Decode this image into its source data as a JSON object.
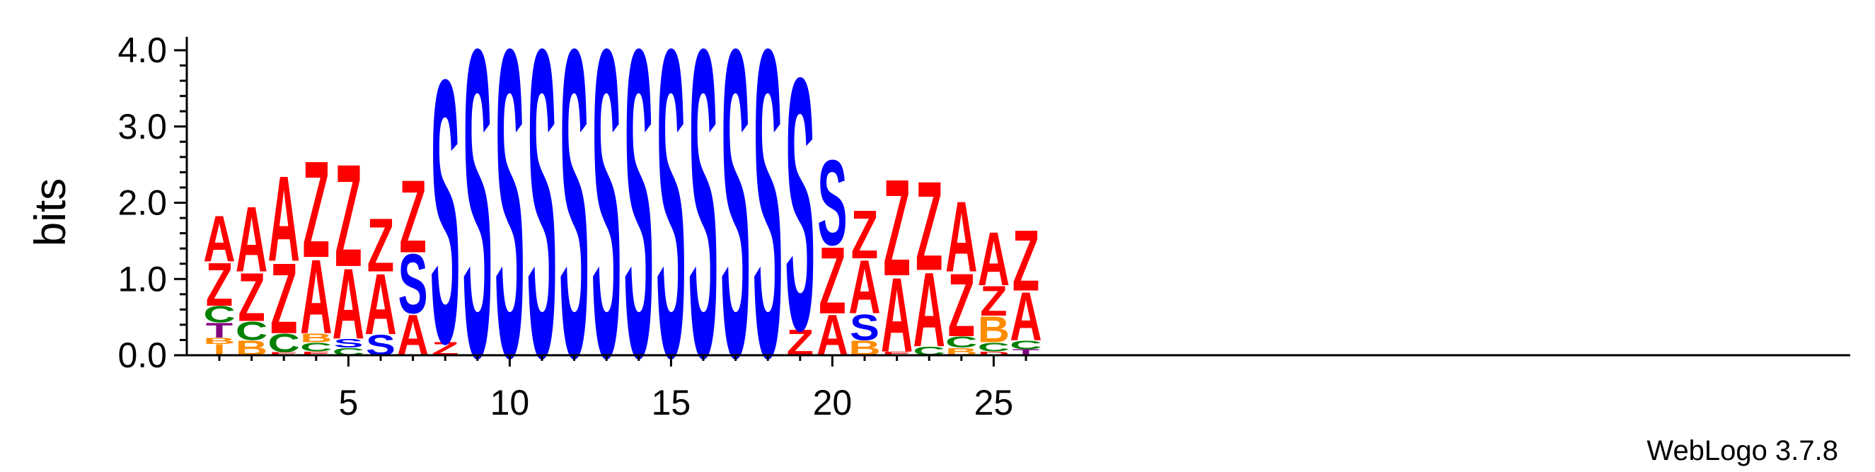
{
  "chart_data": {
    "type": "sequence-logo",
    "ylabel": "bits",
    "ylim": [
      0,
      4.0
    ],
    "y_ticks": [
      "0.0",
      "1.0",
      "2.0",
      "3.0",
      "4.0"
    ],
    "x_ticks": [
      "5",
      "10",
      "15",
      "20",
      "25"
    ],
    "colors": {
      "A": "#ff0000",
      "Z": "#ff0000",
      "S": "#0000ff",
      "C": "#008000",
      "B": "#ff8c00",
      "T": "#800080",
      "I": "#ff8c00",
      "E": "#ff0000",
      "D": "#ff0000"
    },
    "positions": [
      {
        "pos": 1,
        "stack": [
          [
            "I",
            0.15
          ],
          [
            "B",
            0.08
          ],
          [
            "T",
            0.2
          ],
          [
            "C",
            0.22
          ],
          [
            "Z",
            0.58
          ],
          [
            "A",
            0.62
          ]
        ]
      },
      {
        "pos": 2,
        "stack": [
          [
            "B",
            0.2
          ],
          [
            "C",
            0.25
          ],
          [
            "Z",
            0.65
          ],
          [
            "A",
            0.88
          ]
        ]
      },
      {
        "pos": 3,
        "stack": [
          [
            "E",
            0.04
          ],
          [
            "C",
            0.25
          ],
          [
            "Z",
            0.95
          ],
          [
            "A",
            1.15
          ]
        ]
      },
      {
        "pos": 4,
        "stack": [
          [
            "E",
            0.05
          ],
          [
            "C",
            0.12
          ],
          [
            "B",
            0.12
          ],
          [
            "A",
            1.0
          ],
          [
            "Z",
            1.3
          ]
        ]
      },
      {
        "pos": 5,
        "stack": [
          [
            "C",
            0.1
          ],
          [
            "S",
            0.12
          ],
          [
            "A",
            0.95
          ],
          [
            "Z",
            1.38
          ]
        ]
      },
      {
        "pos": 6,
        "stack": [
          [
            "S",
            0.28
          ],
          [
            "A",
            0.82
          ],
          [
            "Z",
            0.72
          ]
        ]
      },
      {
        "pos": 7,
        "stack": [
          [
            "A",
            0.55
          ],
          [
            "S",
            0.8
          ],
          [
            "Z",
            0.98
          ]
        ]
      },
      {
        "pos": 8,
        "stack": [
          [
            "Z",
            0.18
          ],
          [
            "S",
            3.55
          ]
        ]
      },
      {
        "pos": 9,
        "stack": [
          [
            "S",
            4.15
          ]
        ]
      },
      {
        "pos": 10,
        "stack": [
          [
            "S",
            4.15
          ]
        ]
      },
      {
        "pos": 11,
        "stack": [
          [
            "S",
            4.15
          ]
        ]
      },
      {
        "pos": 12,
        "stack": [
          [
            "S",
            4.15
          ]
        ]
      },
      {
        "pos": 13,
        "stack": [
          [
            "S",
            4.15
          ]
        ]
      },
      {
        "pos": 14,
        "stack": [
          [
            "S",
            4.15
          ]
        ]
      },
      {
        "pos": 15,
        "stack": [
          [
            "S",
            4.15
          ]
        ]
      },
      {
        "pos": 16,
        "stack": [
          [
            "S",
            4.15
          ]
        ]
      },
      {
        "pos": 17,
        "stack": [
          [
            "S",
            4.15
          ]
        ]
      },
      {
        "pos": 18,
        "stack": [
          [
            "S",
            4.15
          ]
        ]
      },
      {
        "pos": 19,
        "stack": [
          [
            "Z",
            0.35
          ],
          [
            "S",
            3.4
          ]
        ]
      },
      {
        "pos": 20,
        "stack": [
          [
            "A",
            0.55
          ],
          [
            "Z",
            0.9
          ],
          [
            "S",
            1.15
          ]
        ]
      },
      {
        "pos": 21,
        "stack": [
          [
            "B",
            0.2
          ],
          [
            "S",
            0.35
          ],
          [
            "A",
            0.72
          ],
          [
            "Z",
            0.65
          ]
        ]
      },
      {
        "pos": 22,
        "stack": [
          [
            "E",
            0.05
          ],
          [
            "A",
            1.0
          ],
          [
            "Z",
            1.3
          ]
        ]
      },
      {
        "pos": 23,
        "stack": [
          [
            "C",
            0.12
          ],
          [
            "A",
            1.0
          ],
          [
            "Z",
            1.2
          ]
        ]
      },
      {
        "pos": 24,
        "stack": [
          [
            "B",
            0.1
          ],
          [
            "C",
            0.15
          ],
          [
            "Z",
            0.85
          ],
          [
            "A",
            0.95
          ]
        ]
      },
      {
        "pos": 25,
        "stack": [
          [
            "D",
            0.05
          ],
          [
            "C",
            0.12
          ],
          [
            "B",
            0.35
          ],
          [
            "Z",
            0.4
          ],
          [
            "A",
            0.72
          ]
        ]
      },
      {
        "pos": 26,
        "stack": [
          [
            "T",
            0.08
          ],
          [
            "C",
            0.12
          ],
          [
            "A",
            0.65
          ],
          [
            "Z",
            0.82
          ]
        ]
      }
    ]
  },
  "footer": {
    "label": "WebLogo 3.7.8"
  }
}
